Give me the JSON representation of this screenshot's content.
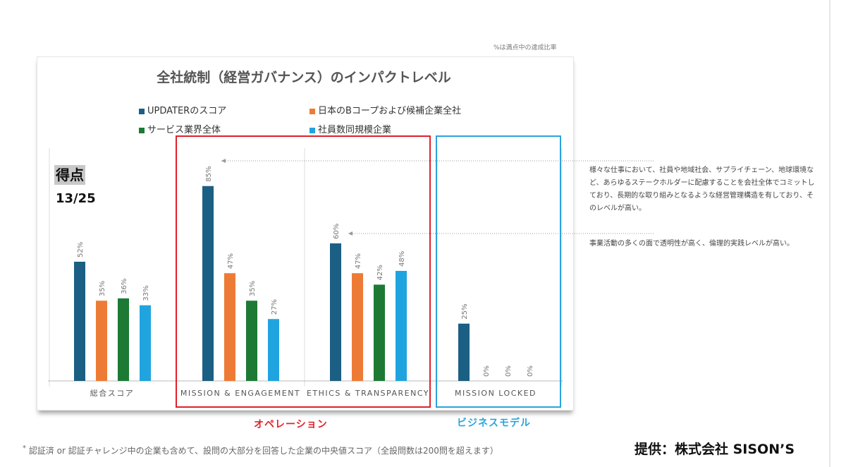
{
  "note_top": "%は満点中の達成比率",
  "chart_data": {
    "type": "bar",
    "title": "全社統制（経営ガバナンス）のインパクトレベル",
    "categories": [
      "総合スコア",
      "MISSION & ENGAGEMENT",
      "ETHICS & TRANSPARENCY",
      "MISSION LOCKED"
    ],
    "series": [
      {
        "name": "UPDATERのスコア",
        "color": "#1b5f84",
        "values": [
          52,
          85,
          60,
          25
        ],
        "labels": [
          "52%",
          "85%",
          "60%",
          "25%"
        ]
      },
      {
        "name": "日本のBコープおよび候補企業全社",
        "color": "#ee7b35",
        "values": [
          35,
          47,
          47,
          0
        ],
        "labels": [
          "35%",
          "47%",
          "47%",
          "0%"
        ]
      },
      {
        "name": "サービス業界全体",
        "color": "#1c7a34",
        "values": [
          36,
          35,
          42,
          0
        ],
        "labels": [
          "36%",
          "35%",
          "42%",
          "0%"
        ]
      },
      {
        "name": "社員数同規模企業",
        "color": "#20a4e0",
        "values": [
          33,
          27,
          48,
          0
        ],
        "labels": [
          "33%",
          "27%",
          "48%",
          "0%"
        ]
      }
    ],
    "ylim": [
      0,
      100
    ],
    "xlabel": "",
    "ylabel": ""
  },
  "score": {
    "label": "得点",
    "value": "13/25"
  },
  "annotations": [
    "様々な仕事において、社員や地域社会、サプライチェーン、地球環境など、あらゆるステークホルダーに配慮することを会社全体でコミットしており、長期的な取り組みとなるような経営管理構造を有しており、そのレベルが高い。",
    "事業活動の多くの面で透明性が高く、倫理的実践レベルが高い。"
  ],
  "group_labels": {
    "operation": "オペレーション",
    "business_model": "ビジネスモデル"
  },
  "footnote": {
    "mark": "*",
    "text": "認証済 or 認証チャレンジ中の企業も含めて、設問の大部分を回答した企業の中央値スコア（全設問数は200問を超えます）"
  },
  "credit": "提供：株式会社 SISON’S"
}
